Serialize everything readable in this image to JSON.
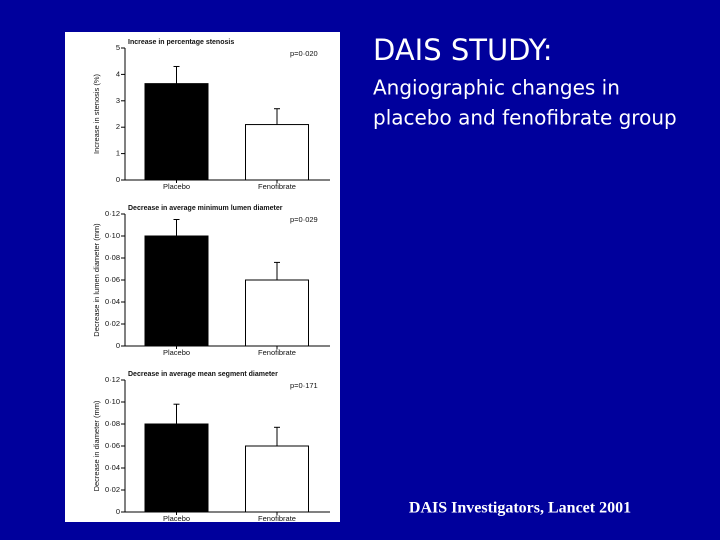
{
  "slide": {
    "title": "DAIS STUDY:",
    "subtitle_lines": [
      "Angiographic changes in",
      "placebo and fenofibrate group"
    ],
    "citation": "DAIS Investigators, Lancet 2001"
  },
  "chart_data": [
    {
      "type": "bar",
      "title": "Increase in percentage stenosis",
      "ylabel": "Increase in stenosis (%)",
      "annotation": "p=0·020",
      "categories": [
        "Placebo",
        "Fenofibrate"
      ],
      "values": [
        3.65,
        2.1
      ],
      "errors": [
        0.65,
        0.6
      ],
      "colors": [
        "#000000",
        "#ffffff"
      ],
      "ylim": [
        0,
        5
      ],
      "yticks": [
        0,
        1,
        2,
        3,
        4,
        5
      ]
    },
    {
      "type": "bar",
      "title": "Decrease in average minimum lumen diameter",
      "ylabel": "Decrease in lumen diameter (mm)",
      "annotation": "p=0·029",
      "categories": [
        "Placebo",
        "Fenofibrate"
      ],
      "values": [
        0.1,
        0.06
      ],
      "errors": [
        0.015,
        0.016
      ],
      "colors": [
        "#000000",
        "#ffffff"
      ],
      "ylim": [
        0,
        0.12
      ],
      "yticks": [
        0,
        {
          "value": 0.02,
          "label": "0·02"
        },
        {
          "value": 0.04,
          "label": "0·04"
        },
        {
          "value": 0.06,
          "label": "0·06"
        },
        {
          "value": 0.08,
          "label": "0·08"
        },
        {
          "value": 0.1,
          "label": "0·10"
        },
        {
          "value": 0.12,
          "label": "0·12"
        }
      ]
    },
    {
      "type": "bar",
      "title": "Decrease in average mean segment diameter",
      "ylabel": "Decrease in diameter (mm)",
      "annotation": "p=0·171",
      "categories": [
        "Placebo",
        "Fenofibrate"
      ],
      "values": [
        0.08,
        0.06
      ],
      "errors": [
        0.018,
        0.017
      ],
      "colors": [
        "#000000",
        "#ffffff"
      ],
      "ylim": [
        0,
        0.12
      ],
      "yticks": [
        0,
        {
          "value": 0.02,
          "label": "0·02"
        },
        {
          "value": 0.04,
          "label": "0·04"
        },
        {
          "value": 0.06,
          "label": "0·06"
        },
        {
          "value": 0.08,
          "label": "0·08"
        },
        {
          "value": 0.1,
          "label": "0·10"
        },
        {
          "value": 0.12,
          "label": "0·12"
        }
      ]
    }
  ]
}
